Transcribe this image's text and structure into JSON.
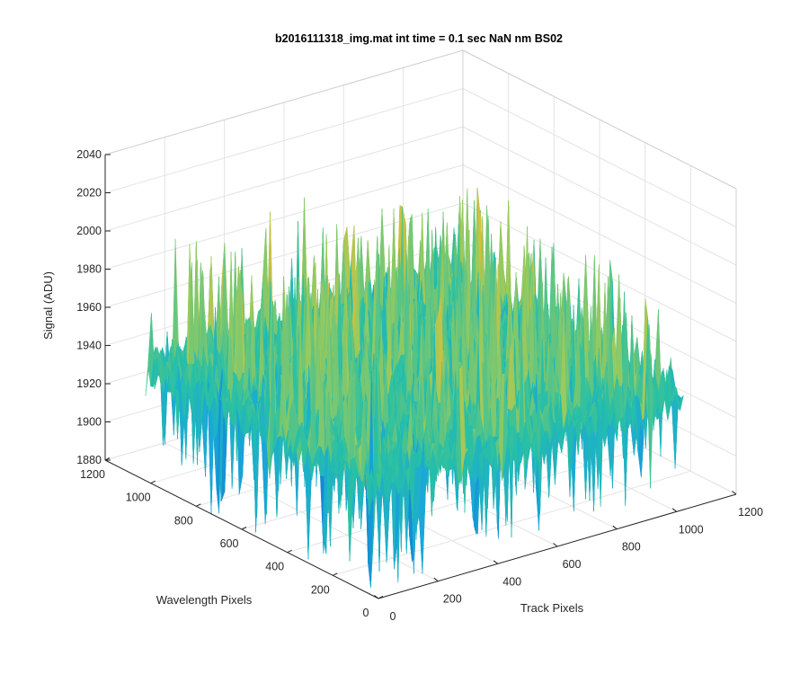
{
  "chart_data": {
    "type": "surface",
    "title": "b2016111318_img.mat int time = 0.1 sec  NaN nm BS02",
    "xlabel": "Track Pixels",
    "ylabel": "Wavelength Pixels",
    "zlabel": "Signal (ADU)",
    "xlim": [
      0,
      1200
    ],
    "ylim": [
      0,
      1200
    ],
    "zlim": [
      1880,
      2040
    ],
    "xticks": [
      "0",
      "200",
      "400",
      "600",
      "800",
      "1000",
      "1200"
    ],
    "yticks": [
      "0",
      "200",
      "400",
      "600",
      "800",
      "1000",
      "1200"
    ],
    "zticks": [
      "1880",
      "1900",
      "1920",
      "1940",
      "1960",
      "1980",
      "2000",
      "2020",
      "2040"
    ],
    "data_extent": {
      "x": [
        1,
        1024
      ],
      "y": [
        1,
        1024
      ]
    },
    "mean_signal": 1940,
    "approx_min": 1875,
    "approx_max": 2030,
    "grid": true,
    "box": true,
    "colormap": [
      "#3e26a8",
      "#0f78d0",
      "#1aa8d8",
      "#27c0a6",
      "#9bca5c",
      "#e6bb34",
      "#f9fb0e"
    ]
  }
}
